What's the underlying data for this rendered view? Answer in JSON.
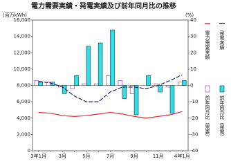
{
  "chart_data": {
    "type": "bar_line",
    "title": "電力需要実績・発電実績及び前年同月比の推移",
    "ylabel": "(百万kWh)",
    "y2label": "(%)",
    "categories": [
      "3年1月",
      null,
      "3月",
      null,
      "5月",
      null,
      "7月",
      null,
      "9月",
      null,
      "11月",
      null,
      "4年1月"
    ],
    "ylim": [
      0,
      16000
    ],
    "yticks": [
      0,
      {
        "value": 2000,
        "label": "2,000"
      },
      {
        "value": 4000,
        "label": "4,000"
      },
      {
        "value": 6000,
        "label": "6,000"
      },
      {
        "value": 8000,
        "label": "8,000"
      },
      {
        "value": 10000,
        "label": "10,000"
      },
      {
        "value": 12000,
        "label": "12,000"
      },
      {
        "value": 14000,
        "label": "14,000"
      },
      {
        "value": 16000,
        "label": "16,000"
      }
    ],
    "y2lim": [
      -40,
      40
    ],
    "y2ticks": [
      -40,
      -30,
      -20,
      -10,
      0,
      10,
      20,
      30,
      40
    ],
    "series": [
      {
        "name": "発電実績",
        "kind": "line",
        "color": "#1f2a6b",
        "values": [
          8500,
          8300,
          7800,
          6700,
          6000,
          6000,
          7200,
          7800,
          7800,
          7600,
          8000,
          8600,
          9300
        ]
      },
      {
        "name": "電力需要実績",
        "kind": "line",
        "color": "#e03030",
        "values": [
          4700,
          4600,
          4300,
          4200,
          4300,
          4500,
          4700,
          4500,
          4200,
          4000,
          4200,
          4400,
          4800
        ]
      },
      {
        "name": "前年同月比（需要）",
        "kind": "bar",
        "axis": "y2",
        "color": "#ffffff",
        "stroke": "#a040a0",
        "values": [
          3,
          2,
          -1,
          -2,
          1,
          1,
          6,
          3,
          -5,
          0,
          1,
          -1,
          2
        ]
      },
      {
        "name": "前年同月比（発電）",
        "kind": "bar",
        "axis": "y2",
        "color": "#33dde8",
        "stroke": "#205050",
        "values": [
          2,
          2,
          -5,
          6,
          24,
          26,
          34,
          -8,
          -18,
          6,
          -4,
          -17,
          3
        ]
      }
    ]
  }
}
